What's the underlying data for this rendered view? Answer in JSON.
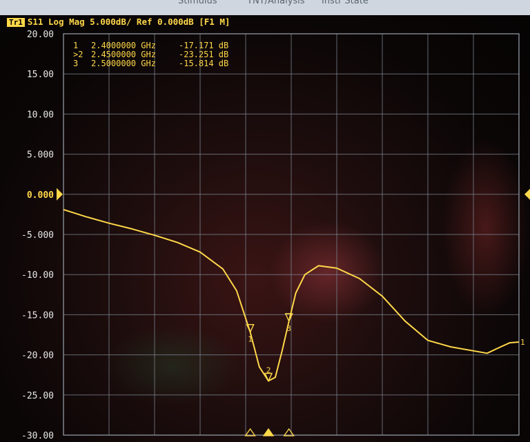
{
  "menubar": {
    "items": [
      "Stimulus",
      "TNT/Analysis",
      "Instr State"
    ]
  },
  "trace": {
    "badge": "Tr1",
    "header": "S11 Log Mag 5.000dB/ Ref 0.000dB [F1 M]",
    "color": "#ffd84a",
    "reference_label": "0.000"
  },
  "markers": [
    {
      "id": "1",
      "active": false,
      "freq": "2.4000000 GHz",
      "value": "-17.171 dB"
    },
    {
      "id": "2",
      "active": true,
      "freq": "2.4500000 GHz",
      "value": "-23.251 dB"
    },
    {
      "id": "3",
      "active": false,
      "freq": "2.5000000 GHz",
      "value": "-15.814 dB"
    }
  ],
  "chart_data": {
    "type": "line",
    "y_tick_labels": [
      "20.00",
      "15.00",
      "10.00",
      "5.000",
      "0.000",
      "-5.000",
      "-10.00",
      "-15.00",
      "-20.00",
      "-25.00",
      "-30.00"
    ],
    "ylim": [
      -30,
      20
    ],
    "xlim": [
      0,
      10
    ],
    "grid": true,
    "series": [
      {
        "x": [
          0,
          0.5,
          1,
          1.5,
          2,
          2.5,
          3,
          3.5,
          3.8,
          4.1,
          4.3,
          4.5,
          4.65,
          4.8,
          4.95,
          5.1,
          5.3,
          5.6,
          6,
          6.5,
          7,
          7.5,
          8,
          8.5,
          9,
          9.3,
          9.6,
          9.8,
          10
        ],
        "y": [
          -1.9,
          -2.8,
          -3.6,
          -4.3,
          -5.1,
          -6.0,
          -7.2,
          -9.3,
          -12.0,
          -17.17,
          -21.5,
          -23.25,
          -22.8,
          -19.5,
          -15.81,
          -12.3,
          -10.0,
          -8.9,
          -9.2,
          -10.5,
          -12.7,
          -15.8,
          -18.2,
          -19.0,
          -19.5,
          -19.8,
          -19.0,
          -18.5,
          -18.4
        ]
      }
    ],
    "marker_points": [
      {
        "id": "1",
        "x": 4.1,
        "y": -17.171
      },
      {
        "id": "2",
        "x": 4.5,
        "y": -23.251
      },
      {
        "id": "3",
        "x": 4.95,
        "y": -15.814
      }
    ]
  }
}
